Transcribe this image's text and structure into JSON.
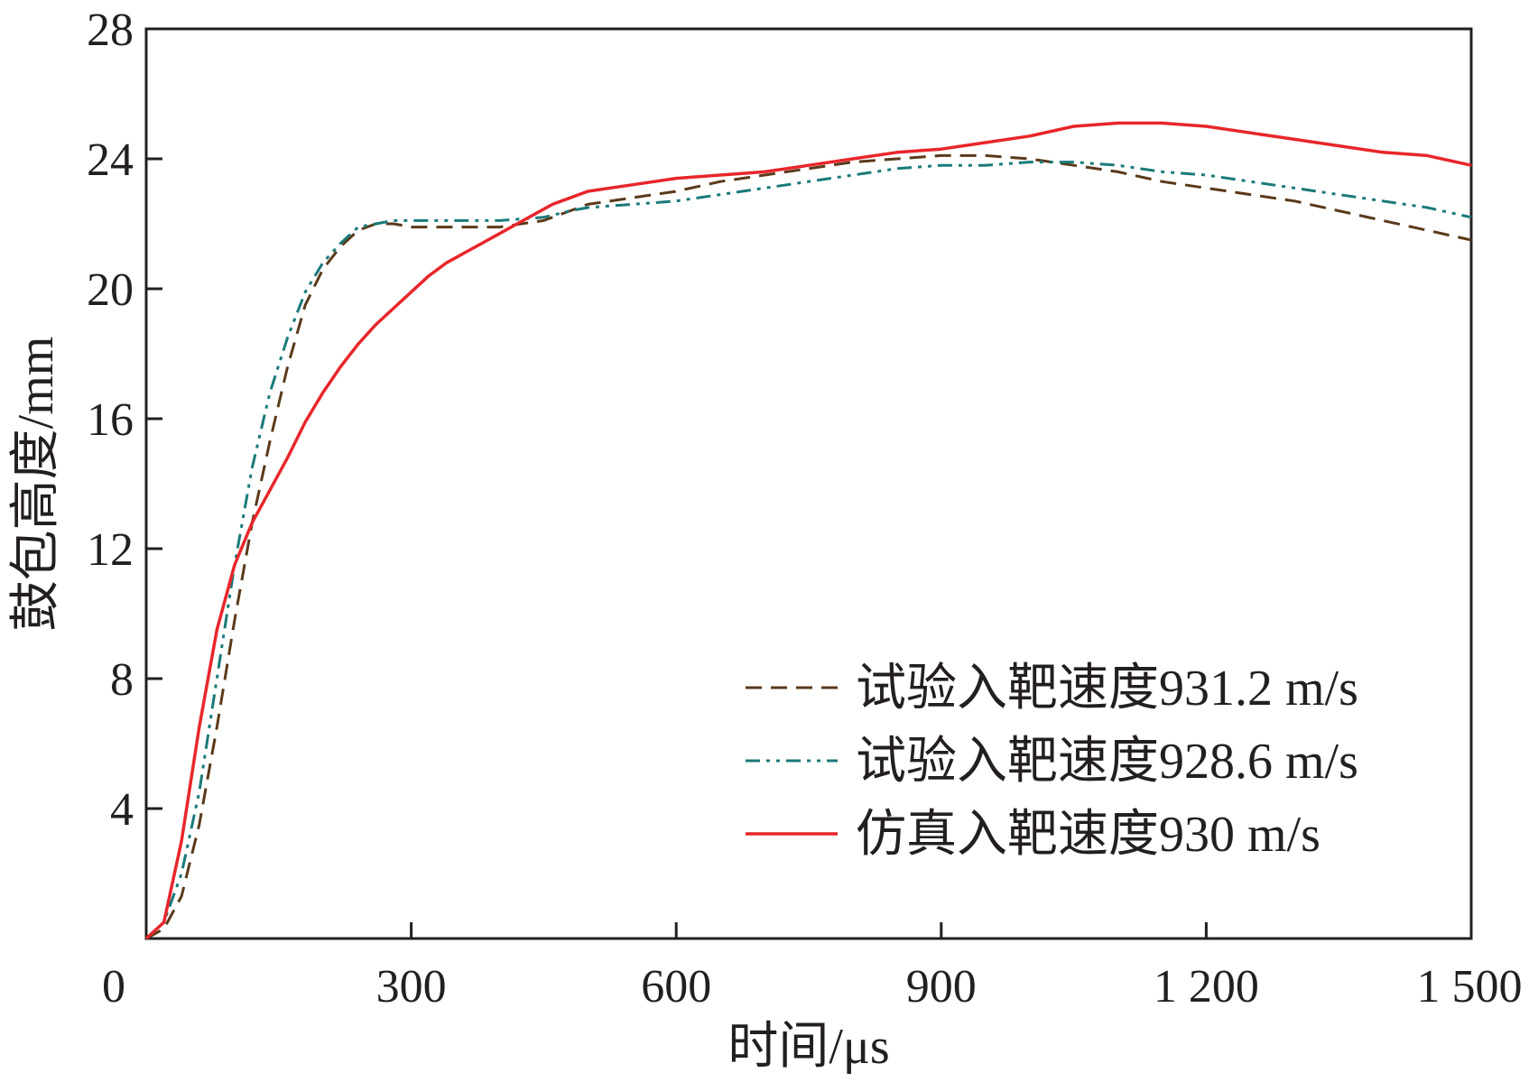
{
  "chart_data": {
    "type": "line",
    "title": "",
    "xlabel": "时间/μs",
    "ylabel": "鼓包高度/mm",
    "xlim": [
      0,
      1500
    ],
    "ylim": [
      0,
      28
    ],
    "x_ticks": [
      0,
      300,
      600,
      900,
      1200,
      1500
    ],
    "x_tick_labels": [
      "0",
      "300",
      "600",
      "900",
      "1 200",
      "1 500"
    ],
    "y_ticks": [
      4,
      8,
      12,
      16,
      20,
      24,
      28
    ],
    "y_tick_labels": [
      "4",
      "8",
      "12",
      "16",
      "20",
      "24",
      "28"
    ],
    "grid": false,
    "legend_position": "bottom-right",
    "series": [
      {
        "name": "试验入靶速度931.2 m/s",
        "color": "#5a3a1a",
        "style": "dashed",
        "x": [
          0,
          20,
          40,
          60,
          80,
          100,
          120,
          140,
          160,
          180,
          200,
          220,
          240,
          260,
          280,
          300,
          320,
          340,
          360,
          400,
          450,
          480,
          500,
          550,
          600,
          650,
          700,
          750,
          800,
          850,
          900,
          950,
          1000,
          1050,
          1100,
          1150,
          1200,
          1250,
          1300,
          1350,
          1400,
          1450,
          1500
        ],
        "y": [
          0,
          0.3,
          1.3,
          3.5,
          6.5,
          9.8,
          12.8,
          15.3,
          17.6,
          19.5,
          20.6,
          21.3,
          21.8,
          22.0,
          22.0,
          21.9,
          21.9,
          21.9,
          21.9,
          21.9,
          22.1,
          22.4,
          22.6,
          22.8,
          23.0,
          23.3,
          23.5,
          23.7,
          23.9,
          24.0,
          24.1,
          24.1,
          24.0,
          23.8,
          23.6,
          23.3,
          23.1,
          22.9,
          22.7,
          22.4,
          22.1,
          21.8,
          21.5
        ]
      },
      {
        "name": "试验入靶速度928.6 m/s",
        "color": "#1a7a7a",
        "style": "dash-dot-dot",
        "x": [
          0,
          20,
          40,
          60,
          80,
          100,
          120,
          140,
          160,
          180,
          200,
          220,
          240,
          260,
          280,
          300,
          320,
          340,
          360,
          400,
          450,
          480,
          500,
          550,
          600,
          650,
          700,
          750,
          800,
          850,
          900,
          950,
          1000,
          1050,
          1100,
          1150,
          1200,
          1250,
          1300,
          1350,
          1400,
          1450,
          1500
        ],
        "y": [
          0,
          0.5,
          2.0,
          4.5,
          8.0,
          11.5,
          14.5,
          16.8,
          18.5,
          19.9,
          20.8,
          21.4,
          21.9,
          22.0,
          22.1,
          22.1,
          22.1,
          22.1,
          22.1,
          22.1,
          22.2,
          22.4,
          22.5,
          22.6,
          22.7,
          22.9,
          23.1,
          23.3,
          23.5,
          23.7,
          23.8,
          23.8,
          23.9,
          23.9,
          23.8,
          23.6,
          23.5,
          23.3,
          23.1,
          22.9,
          22.7,
          22.5,
          22.2
        ]
      },
      {
        "name": "仿真入靶速度930 m/s",
        "color": "#e8262b",
        "style": "solid",
        "x": [
          0,
          20,
          40,
          60,
          80,
          100,
          120,
          140,
          160,
          180,
          200,
          220,
          240,
          260,
          280,
          300,
          320,
          340,
          360,
          380,
          400,
          420,
          440,
          460,
          480,
          500,
          550,
          600,
          650,
          700,
          750,
          800,
          850,
          900,
          950,
          1000,
          1050,
          1100,
          1150,
          1200,
          1250,
          1300,
          1350,
          1400,
          1450,
          1500
        ],
        "y": [
          0,
          0.5,
          3.0,
          6.5,
          9.5,
          11.5,
          12.8,
          13.8,
          14.8,
          15.9,
          16.8,
          17.6,
          18.3,
          18.9,
          19.4,
          19.9,
          20.4,
          20.8,
          21.1,
          21.4,
          21.7,
          22.0,
          22.3,
          22.6,
          22.8,
          23.0,
          23.2,
          23.4,
          23.5,
          23.6,
          23.8,
          24.0,
          24.2,
          24.3,
          24.5,
          24.7,
          25.0,
          25.1,
          25.1,
          25.0,
          24.8,
          24.6,
          24.4,
          24.2,
          24.1,
          23.8
        ]
      }
    ]
  }
}
